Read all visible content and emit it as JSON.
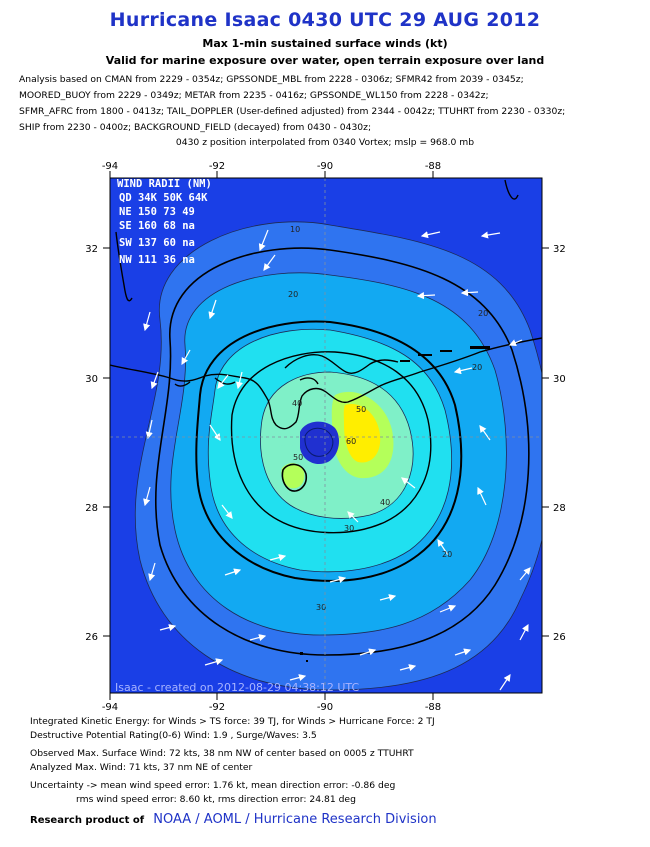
{
  "header": {
    "title": "Hurricane Isaac 0430 UTC 29 AUG 2012",
    "subtitle1": "Max 1-min sustained surface winds (kt)",
    "subtitle2": "Valid for marine exposure over water, open terrain exposure over land"
  },
  "analysis_lines": [
    "Analysis based on CMAN from 2229 - 0354z; GPSSONDE_MBL from 2228 - 0306z; SFMR42 from 2039 - 0345z;",
    "MOORED_BUOY from 2229 - 0349z; METAR from 2235 - 0416z; GPSSONDE_WL150 from 2228 - 0342z;",
    "SFMR_AFRC from 1800 - 0413z; TAIL_DOPPLER (User-defined adjusted) from 2344 - 0042z; TTUHRT from 2230 - 0330z;",
    "SHIP from 2230 - 0400z; BACKGROUND_FIELD (decayed) from 0430 - 0430z;"
  ],
  "position_note": "0430 z position interpolated from 0340 Vortex; mslp = 968.0 mb",
  "map": {
    "lon_ticks": [
      "-94",
      "-92",
      "-90",
      "-88"
    ],
    "lat_ticks": [
      "32",
      "30",
      "28",
      "26"
    ],
    "wind_radii": {
      "title": "WIND RADII (NM)",
      "header": "QD 34K 50K 64K",
      "rows": [
        "NE 150  73  49",
        "SE 160  68  na",
        "SW 137  60  na",
        "NW 111  36  na"
      ]
    },
    "contour_labels": [
      "10",
      "20",
      "20",
      "20",
      "20",
      "30",
      "30",
      "40",
      "40",
      "50",
      "50",
      "60"
    ],
    "credit": "Isaac - created on 2012-08-29 04:38:12 UTC",
    "colors": {
      "ocean_blue": "#1a3fe6",
      "band_20": "#2f74f0",
      "band_30": "#12a9f2",
      "band_40": "#20e0f0",
      "band_50": "#7ff0c8",
      "band_60": "#b4ff5a",
      "band_70": "#ffee00",
      "core": "#2030d0"
    }
  },
  "footer": {
    "ike": "Integrated Kinetic Energy: for Winds > TS force: 39 TJ, for Winds > Hurricane Force: 2 TJ",
    "dpr": "Destructive Potential Rating(0-6)  Wind: 1.9 , Surge/Waves: 3.5",
    "observed": "Observed Max. Surface Wind: 72 kts, 38 nm NW of center based on 0005 z TTUHRT",
    "analyzed": "Analyzed Max. Wind: 71 kts, 37 nm  NE of center",
    "uncert1": "Uncertainty -> mean wind speed error: 1.76 kt, mean direction error:  -0.86 deg",
    "uncert2": "rms wind speed error: 8.60 kt, rms direction error: 24.81 deg",
    "research_label": "Research product of",
    "org": "NOAA  /  AOML  /  Hurricane Research Division"
  }
}
